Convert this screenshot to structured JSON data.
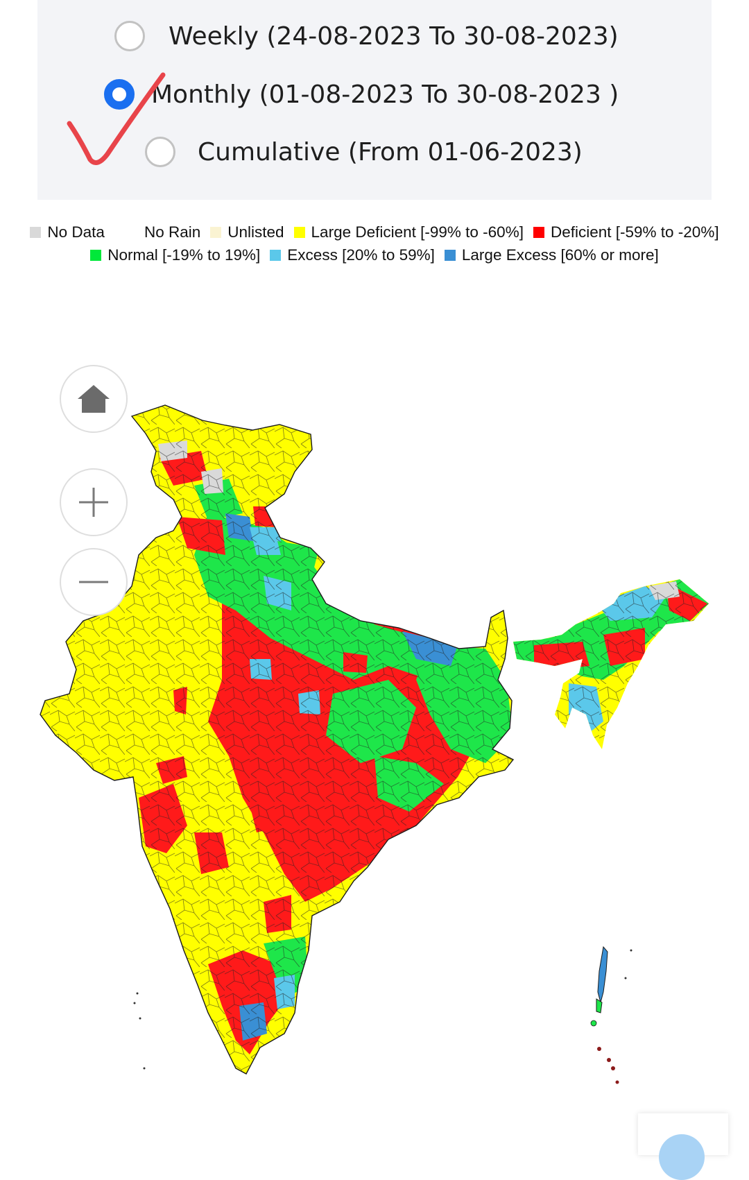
{
  "period_selector": {
    "options": [
      {
        "label": "Weekly (24-08-2023 To 30-08-2023)",
        "selected": false
      },
      {
        "label": "Monthly (01-08-2023 To 30-08-2023 )",
        "selected": true
      },
      {
        "label": "Cumulative (From 01-06-2023)",
        "selected": false
      }
    ]
  },
  "legend": {
    "items": [
      {
        "label": "No Data",
        "color": "#d9d9d9"
      },
      {
        "label": "No Rain",
        "color": "#ffffff"
      },
      {
        "label": "Unlisted",
        "color": "#faf3d2"
      },
      {
        "label": "Large Deficient [-99% to -60%]",
        "color": "#ffff00"
      },
      {
        "label": "Deficient [-59% to -20%]",
        "color": "#ff0000"
      },
      {
        "label": "Normal [-19% to 19%]",
        "color": "#00e83a"
      },
      {
        "label": "Excess [20% to 59%]",
        "color": "#5bc8ea"
      },
      {
        "label": "Large Excess [60% or more]",
        "color": "#3a8fd4"
      }
    ]
  },
  "map_controls": {
    "home": "home-icon",
    "zoom_in": "plus-icon",
    "zoom_out": "minus-icon"
  },
  "colors": {
    "border": "#1a1a1a",
    "selected_radio": "#1a6ff0",
    "checkmark": "#e8444a"
  }
}
